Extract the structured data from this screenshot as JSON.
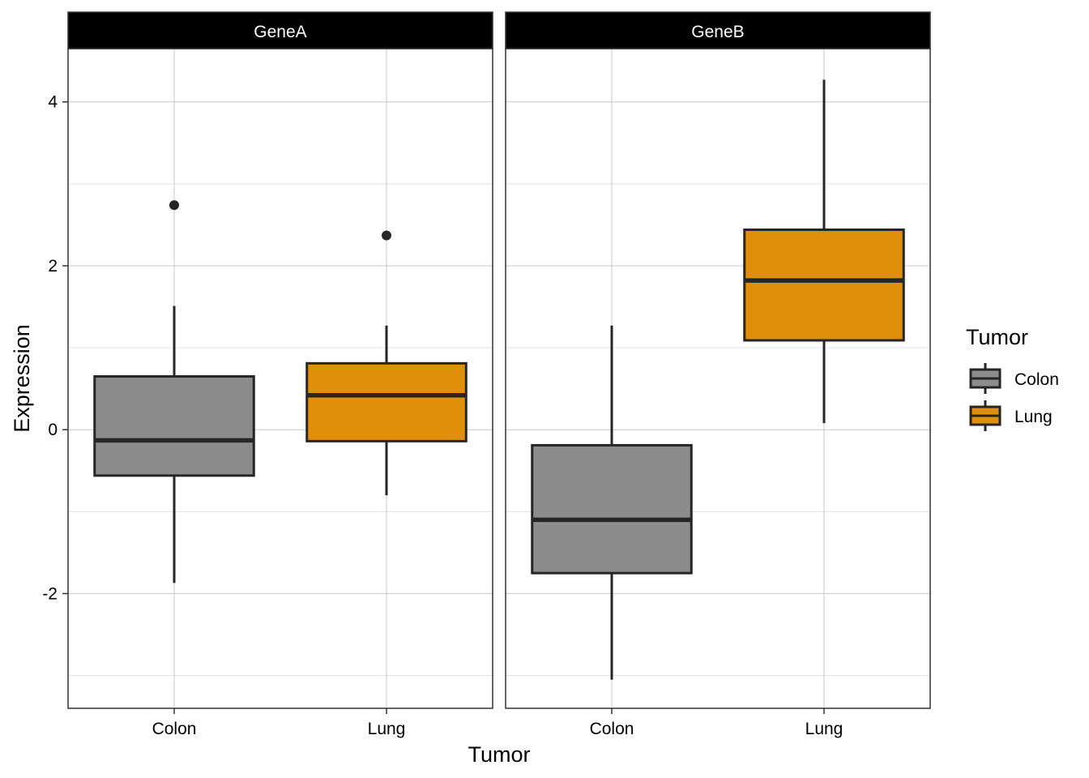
{
  "chart_data": {
    "type": "boxplot",
    "title": "",
    "xlabel": "Tumor",
    "ylabel": "Expression",
    "ylim": [
      -3.4,
      4.65
    ],
    "yticks": [
      -2,
      0,
      2,
      4
    ],
    "yticks_minor": [
      -3,
      -1,
      1,
      3
    ],
    "categories": [
      "Colon",
      "Lung"
    ],
    "grid": true,
    "legend": {
      "title": "Tumor",
      "position": "right",
      "entries": [
        {
          "name": "Colon",
          "color": "#8c8c8c"
        },
        {
          "name": "Lung",
          "color": "#df8f0a"
        }
      ]
    },
    "facets": [
      {
        "label": "GeneA",
        "boxes": [
          {
            "category": "Colon",
            "lower_whisker": -1.87,
            "q1": -0.56,
            "median": -0.13,
            "q3": 0.65,
            "upper_whisker": 1.51,
            "outliers": [
              2.74
            ]
          },
          {
            "category": "Lung",
            "lower_whisker": -0.8,
            "q1": -0.14,
            "median": 0.42,
            "q3": 0.81,
            "upper_whisker": 1.27,
            "outliers": [
              2.37
            ]
          }
        ]
      },
      {
        "label": "GeneB",
        "boxes": [
          {
            "category": "Colon",
            "lower_whisker": -3.05,
            "q1": -1.75,
            "median": -1.1,
            "q3": -0.19,
            "upper_whisker": 1.27,
            "outliers": []
          },
          {
            "category": "Lung",
            "lower_whisker": 0.08,
            "q1": 1.09,
            "median": 1.82,
            "q3": 2.44,
            "upper_whisker": 4.27,
            "outliers": []
          }
        ]
      }
    ]
  },
  "colors": {
    "box_outline": "#262626",
    "grid": "#c8c8c8",
    "strip_background": "#000000",
    "panel_border": "#333333"
  }
}
